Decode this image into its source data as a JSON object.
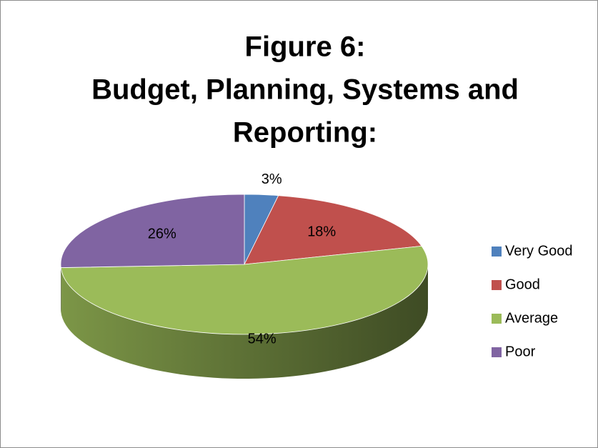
{
  "chart_data": {
    "type": "pie",
    "title": [
      "Figure 6:",
      "Budget, Planning, Systems and",
      "Reporting:"
    ],
    "categories": [
      "Very Good",
      "Good",
      "Average",
      "Poor"
    ],
    "values": [
      3,
      18,
      54,
      26
    ],
    "value_labels": [
      "3%",
      "18%",
      "54%",
      "26%"
    ],
    "colors": [
      "#4f81bd",
      "#c0504d",
      "#9bbb59",
      "#8064a2"
    ],
    "legend": "right"
  }
}
